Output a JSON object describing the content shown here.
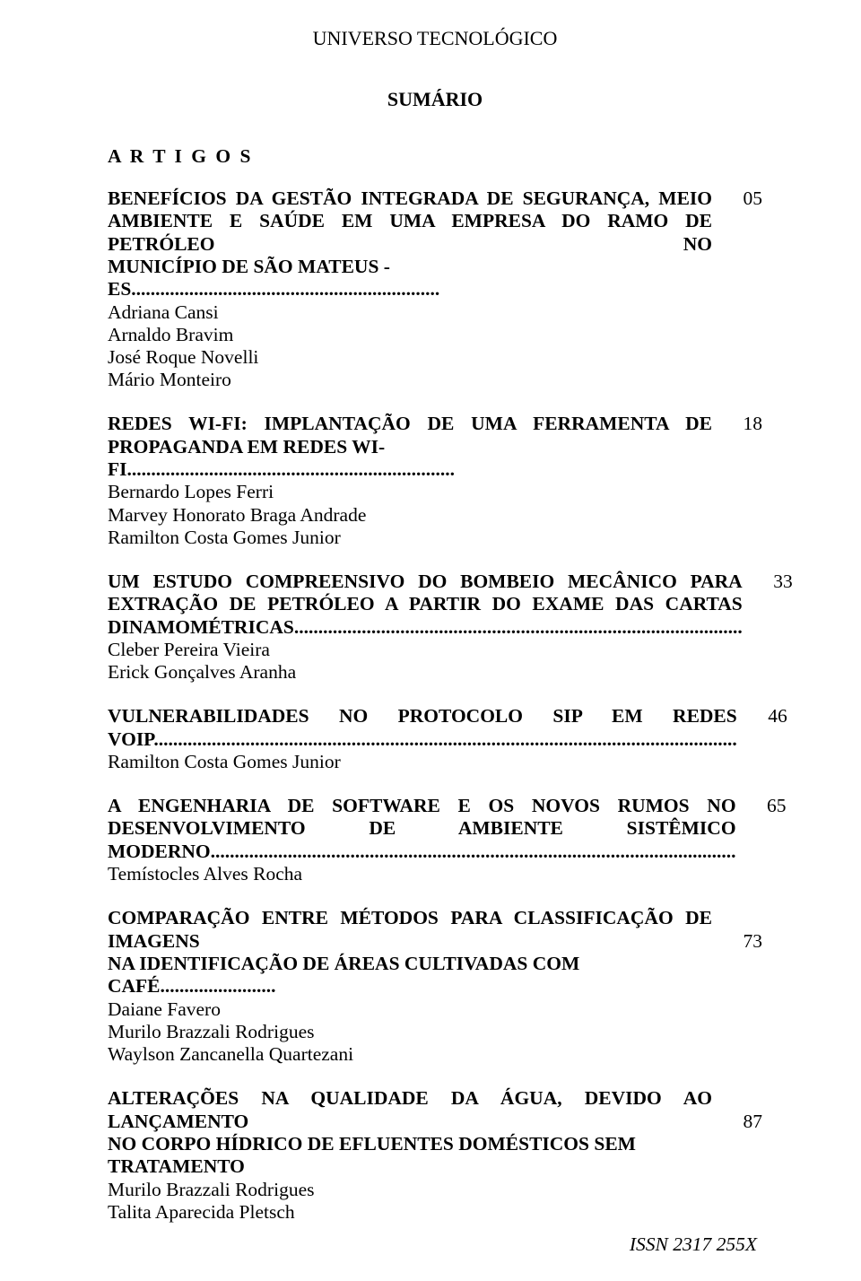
{
  "header": {
    "title": "UNIVERSO TECNOLÓGICO",
    "sumario": "SUMÁRIO",
    "section_label": "A R T I G O S"
  },
  "entries": [
    {
      "title_lines_justified": [
        "BENEFÍCIOS DA GESTÃO INTEGRADA DE SEGURANÇA, MEIO",
        "AMBIENTE E SAÚDE EM UMA EMPRESA DO RAMO DE PETRÓLEO NO"
      ],
      "title_last": "MUNICÍPIO DE SÃO MATEUS - ES................................................................",
      "page": "05",
      "authors": [
        "Adriana Cansi",
        "Arnaldo Bravim",
        " José Roque Novelli",
        "Mário Monteiro"
      ]
    },
    {
      "title_lines_justified": [
        "REDES WI-FI: IMPLANTAÇÃO DE UMA FERRAMENTA DE"
      ],
      "title_last": "PROPAGANDA EM REDES WI-FI....................................................................",
      "page": "18",
      "authors": [
        "Bernardo Lopes Ferri",
        "Marvey Honorato Braga Andrade",
        "Ramilton Costa Gomes Junior"
      ]
    },
    {
      "title_lines_justified": [
        "UM ESTUDO COMPREENSIVO DO BOMBEIO MECÂNICO PARA",
        "EXTRAÇÃO DE PETRÓLEO A PARTIR DO EXAME DAS CARTAS"
      ],
      "title_last": "DINAMOMÉTRICAS.............................................................................................",
      "page": "33",
      "authors": [
        "Cleber Pereira Vieira",
        "Erick Gonçalves Aranha"
      ]
    },
    {
      "title_lines_justified": [
        "VULNERABILIDADES NO PROTOCOLO SIP EM REDES"
      ],
      "title_last": "VOIP.........................................................................................................................",
      "page": "46",
      "authors": [
        "Ramilton Costa Gomes Junior"
      ]
    },
    {
      "title_lines_justified": [
        "A ENGENHARIA DE SOFTWARE E OS NOVOS RUMOS NO",
        "DESENVOLVIMENTO DE AMBIENTE SISTÊMICO"
      ],
      "title_last": "MODERNO.............................................................................................................",
      "page": "65",
      "authors": [
        "Temístocles Alves Rocha"
      ]
    },
    {
      "title_lines_justified": [
        "COMPARAÇÃO ENTRE MÉTODOS PARA CLASSIFICAÇÃO DE IMAGENS"
      ],
      "title_last": "NA IDENTIFICAÇÃO DE ÁREAS CULTIVADAS COM CAFÉ........................",
      "page": "73",
      "page_on_second_line": true,
      "authors": [
        "Daiane Favero",
        "Murilo Brazzali Rodrigues",
        "Waylson Zancanella Quartezani"
      ]
    },
    {
      "title_lines_justified": [
        "ALTERAÇÕES NA QUALIDADE DA ÁGUA, DEVIDO AO LANÇAMENTO"
      ],
      "title_last": "NO CORPO HÍDRICO DE EFLUENTES DOMÉSTICOS SEM TRATAMENTO",
      "page": "87",
      "page_on_second_line": true,
      "authors": [
        "Murilo Brazzali Rodrigues",
        "Talita Aparecida Pletsch"
      ]
    }
  ],
  "footer": {
    "issn": "ISSN 2317 255X"
  },
  "colors": {
    "text": "#000000",
    "background": "#ffffff"
  },
  "typography": {
    "base_font_family": "Times New Roman",
    "base_font_size_pt": 16
  }
}
